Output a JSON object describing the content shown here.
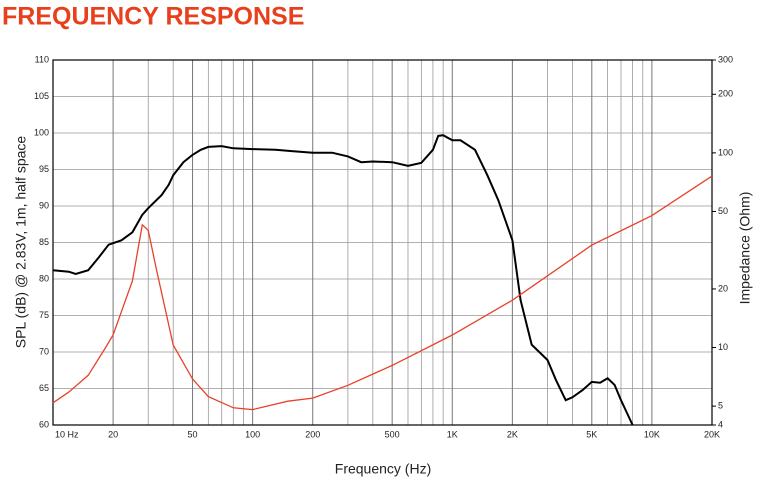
{
  "chart_data": {
    "type": "line",
    "title": "FREQUENCY RESPONSE",
    "xlabel": "Frequency (Hz)",
    "ylabel": "SPL (dB) @ 2.83V, 1m, half space",
    "y2label": "Impedance (Ohm)",
    "xscale": "log",
    "y2scale": "log",
    "grid": true,
    "xlim": [
      10,
      20000
    ],
    "ylim": [
      60,
      110
    ],
    "y2lim": [
      4,
      300
    ],
    "xticks": [
      {
        "value": 10,
        "label": "10 Hz"
      },
      20,
      50,
      100,
      200,
      500,
      {
        "value": 1000,
        "label": "1K"
      },
      {
        "value": 2000,
        "label": "2K"
      },
      {
        "value": 5000,
        "label": "5K"
      },
      {
        "value": 10000,
        "label": "10K"
      },
      {
        "value": 20000,
        "label": "20K"
      }
    ],
    "xminor_ticks": [
      30,
      40,
      60,
      70,
      80,
      90,
      300,
      400,
      600,
      700,
      800,
      900,
      3000,
      4000,
      6000,
      7000,
      8000,
      9000
    ],
    "yticks": [
      60,
      65,
      70,
      75,
      80,
      85,
      90,
      95,
      100,
      105,
      110
    ],
    "y2ticks": [
      4,
      5,
      10,
      20,
      50,
      100,
      200,
      300
    ],
    "series": [
      {
        "color": "#000000",
        "axis": "y",
        "x": [
          10,
          12,
          13,
          15,
          17,
          19,
          22,
          25,
          28,
          30,
          35,
          38,
          40,
          45,
          50,
          55,
          60,
          70,
          80,
          100,
          130,
          160,
          200,
          250,
          300,
          350,
          400,
          500,
          600,
          700,
          800,
          850,
          900,
          1000,
          1100,
          1300,
          1500,
          1700,
          2000,
          2200,
          2500,
          3000,
          3300,
          3700,
          4000,
          4500,
          5000,
          5500,
          6000,
          6500,
          7000,
          8000
        ],
        "values": [
          81.2,
          81,
          80.7,
          81.2,
          83,
          84.7,
          85.3,
          86.4,
          88.8,
          89.7,
          91.5,
          92.9,
          94.2,
          96,
          97,
          97.7,
          98.1,
          98.2,
          97.9,
          97.8,
          97.7,
          97.5,
          97.3,
          97.3,
          96.8,
          96,
          96.1,
          96,
          95.5,
          95.9,
          97.7,
          99.6,
          99.7,
          99,
          99,
          97.7,
          94.2,
          90.8,
          85.3,
          77.1,
          71,
          68.9,
          66.2,
          63.4,
          63.8,
          64.8,
          65.9,
          65.8,
          66.4,
          65.5,
          63.4,
          60
        ]
      },
      {
        "color": "#e8412a",
        "axis": "y2",
        "x": [
          10,
          12,
          15,
          18,
          20,
          25,
          28,
          30,
          33,
          40,
          50,
          60,
          80,
          100,
          150,
          200,
          300,
          500,
          1000,
          2000,
          5000,
          10000,
          20000
        ],
        "values": [
          5.2,
          5.9,
          7.2,
          9.7,
          11.6,
          22,
          42.7,
          40,
          25.1,
          10.3,
          6.9,
          5.6,
          4.9,
          4.8,
          5.3,
          5.5,
          6.4,
          8.1,
          11.6,
          17.5,
          33.6,
          47.6,
          76
        ]
      }
    ]
  }
}
